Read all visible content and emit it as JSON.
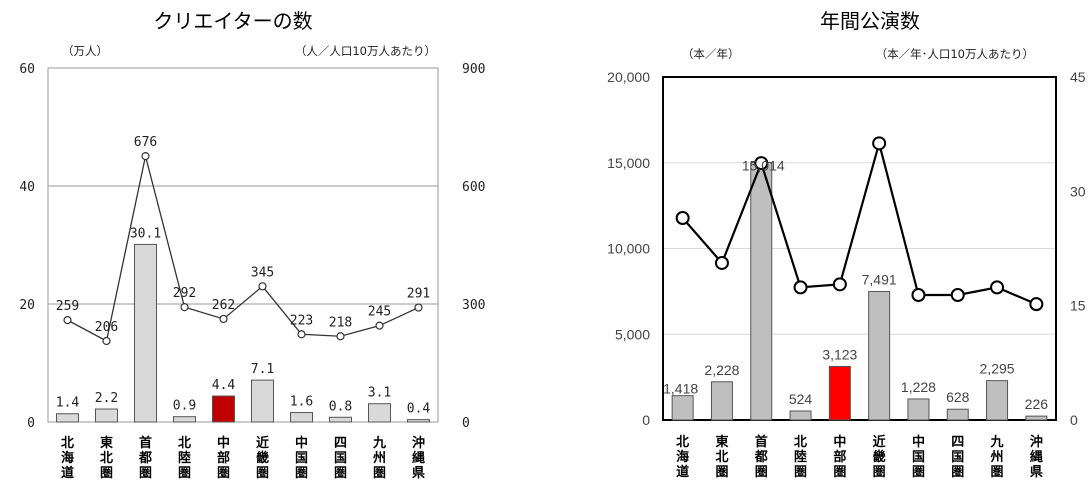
{
  "chart_data": [
    {
      "type": "bar+line",
      "title": "クリエイターの数",
      "ylabel_left": "（万人）",
      "ylabel_right": "（人／人口10万人あたり）",
      "categories": [
        "北海道",
        "東北圏",
        "首都圏",
        "北陸圏",
        "中部圏",
        "近畿圏",
        "中国圏",
        "四国圏",
        "九州圏",
        "沖縄県"
      ],
      "series": [
        {
          "values": [
            1.4,
            2.2,
            30.1,
            0.9,
            4.4,
            7.1,
            1.6,
            0.8,
            3.1,
            0.4
          ],
          "axis": "left",
          "kind": "bar"
        },
        {
          "values": [
            259,
            206,
            676,
            292,
            262,
            345,
            223,
            218,
            245,
            291
          ],
          "axis": "right",
          "kind": "line"
        }
      ],
      "value_labels_bar": [
        "1.4",
        "2.2",
        "30.1",
        "0.9",
        "4.4",
        "7.1",
        "1.6",
        "0.8",
        "3.1",
        "0.4"
      ],
      "value_labels_line": [
        "259",
        "206",
        "676",
        "292",
        "262",
        "345",
        "223",
        "218",
        "245",
        "291"
      ],
      "highlight_index": 4,
      "ylim_left": [
        0,
        60
      ],
      "yticks_left": [
        "0",
        "20",
        "40",
        "60"
      ],
      "ylim_right": [
        0,
        900
      ],
      "yticks_right": [
        "0",
        "300",
        "600",
        "900"
      ],
      "grid": true,
      "colors": {
        "bar": "#d9d9d9",
        "highlight": "#c00000",
        "line": "#333333"
      }
    },
    {
      "type": "bar+line",
      "title": "年間公演数",
      "ylabel_left": "（本／年）",
      "ylabel_right": "（本／年･人口10万人あたり）",
      "categories": [
        "北海道",
        "東北圏",
        "首都圏",
        "北陸圏",
        "中部圏",
        "近畿圏",
        "中国圏",
        "四国圏",
        "九州圏",
        "沖縄県"
      ],
      "series": [
        {
          "values": [
            1418,
            2228,
            15014,
            524,
            3123,
            7491,
            1228,
            628,
            2295,
            226
          ],
          "axis": "left",
          "kind": "bar"
        },
        {
          "values": [
            26.5,
            20.6,
            33.7,
            17.4,
            17.8,
            36.3,
            16.4,
            16.4,
            17.4,
            15.2
          ],
          "axis": "right",
          "kind": "line"
        }
      ],
      "value_labels_bar": [
        "1,418",
        "2,228",
        "15,014",
        "524",
        "3,123",
        "7,491",
        "1,228",
        "628",
        "2,295",
        "226"
      ],
      "highlight_index": 4,
      "ylim_left": [
        0,
        20000
      ],
      "yticks_left": [
        "0",
        "5,000",
        "10,000",
        "15,000",
        "20,000"
      ],
      "ylim_right": [
        0,
        45
      ],
      "yticks_right": [
        "0",
        "15",
        "30",
        "45"
      ],
      "grid": true,
      "colors": {
        "bar": "#bfbfbf",
        "highlight": "#ff0000",
        "line": "#000000"
      }
    }
  ]
}
